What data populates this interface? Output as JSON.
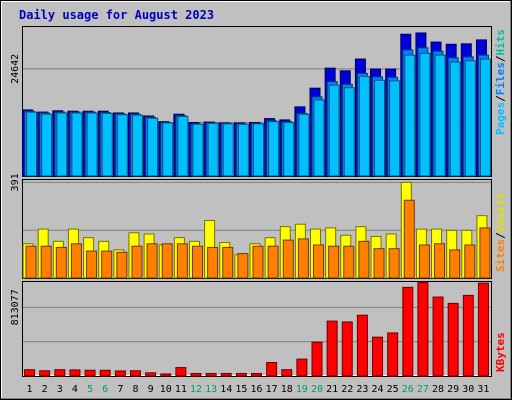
{
  "chart_data": {
    "type": "bar",
    "title": "Daily usage for August 2023",
    "categories": [
      "1",
      "2",
      "3",
      "4",
      "5",
      "6",
      "7",
      "8",
      "9",
      "10",
      "11",
      "12",
      "13",
      "14",
      "15",
      "16",
      "17",
      "18",
      "19",
      "20",
      "21",
      "22",
      "23",
      "24",
      "25",
      "26",
      "27",
      "28",
      "29",
      "30",
      "31"
    ],
    "weekend_days": [
      "5",
      "6",
      "12",
      "13",
      "19",
      "20",
      "26",
      "27"
    ],
    "panels": [
      {
        "name": "hits-files-pages",
        "ytick_label": "24642",
        "ytick_value": 24642,
        "ylim": [
          0,
          34500
        ],
        "series": [
          {
            "name": "Hits",
            "color": "#0000d8",
            "values": [
              15200,
              14700,
              15000,
              14900,
              14900,
              14900,
              14500,
              14500,
              13800,
              12500,
              14200,
              12300,
              12400,
              12200,
              12200,
              12300,
              13200,
              12900,
              15900,
              20200,
              24800,
              24200,
              26900,
              24600,
              24600,
              32600,
              32900,
              30800,
              30300,
              30400,
              31300
            ]
          },
          {
            "name": "Files",
            "color": "#0080ff",
            "values": [
              14900,
              14500,
              14700,
              14700,
              14700,
              14600,
              14300,
              14200,
              13500,
              12300,
              13900,
              12000,
              12200,
              12100,
              12000,
              12100,
              12700,
              12500,
              14400,
              18200,
              21700,
              21100,
              23600,
              22800,
              22700,
              29000,
              29500,
              28700,
              27200,
              27400,
              27800
            ]
          },
          {
            "name": "Pages",
            "color": "#00c0ff",
            "values": [
              14700,
              14200,
              14500,
              14500,
              14500,
              14400,
              14100,
              14000,
              13300,
              12200,
              13700,
              11900,
              12100,
              12000,
              11900,
              12000,
              12500,
              12300,
              14200,
              17500,
              20900,
              20300,
              22900,
              22000,
              21900,
              27800,
              28200,
              27800,
              26200,
              26500,
              26900
            ]
          }
        ]
      },
      {
        "name": "visits-sites",
        "ytick_label": "391",
        "ytick_value": 391,
        "ylim": [
          0,
          405
        ],
        "series": [
          {
            "name": "Visits",
            "color": "#ffff00",
            "values": [
              140,
              200,
              150,
              200,
              165,
              150,
              115,
              185,
              180,
              135,
              165,
              150,
              235,
              145,
              95,
              140,
              165,
              210,
              220,
              200,
              205,
              175,
              210,
              170,
              180,
              391,
              200,
              200,
              195,
              195,
              255
            ]
          },
          {
            "name": "Sites",
            "color": "#ff8000",
            "values": [
              130,
              130,
              125,
              140,
              110,
              110,
              105,
              130,
              140,
              140,
              140,
              130,
              125,
              125,
              100,
              130,
              130,
              155,
              160,
              135,
              130,
              130,
              150,
              120,
              120,
              318,
              135,
              140,
              115,
              135,
              205
            ]
          }
        ]
      },
      {
        "name": "kbytes",
        "ytick_label": "813077",
        "ytick_value": 813077,
        "ylim": [
          0,
          1125000
        ],
        "series": [
          {
            "name": "KBytes",
            "color": "#ff0000",
            "values": [
              75000,
              62000,
              75000,
              72000,
              68000,
              68000,
              60000,
              62000,
              38000,
              25000,
              100000,
              30000,
              30000,
              30000,
              30000,
              30000,
              160000,
              75000,
              200000,
              400000,
              650000,
              640000,
              720000,
              460000,
              510000,
              1050000,
              1110000,
              935000,
              860000,
              955000,
              1100000
            ]
          }
        ]
      }
    ],
    "legend_right": [
      {
        "text": "Pages",
        "color": "#00c0ff"
      },
      {
        "text": "/",
        "color": "#000000"
      },
      {
        "text": "Files",
        "color": "#0080ff"
      },
      {
        "text": "/",
        "color": "#000000"
      },
      {
        "text": "Hits",
        "color": "#00c0a0"
      },
      {
        "text": "Sites",
        "color": "#ff8000"
      },
      {
        "text": "/",
        "color": "#000000"
      },
      {
        "text": "Visits",
        "color": "#e0e000"
      },
      {
        "text": "KBytes",
        "color": "#ff0000"
      }
    ]
  }
}
